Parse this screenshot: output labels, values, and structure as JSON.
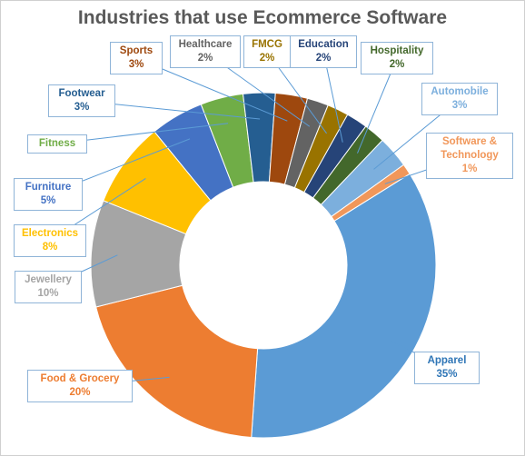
{
  "chart_data": {
    "type": "pie",
    "variant": "doughnut",
    "title": "Industries that use  Ecommerce Software",
    "series": [
      {
        "values": [
          {
            "label": "Apparel",
            "value": 35,
            "value_label": "35%",
            "color": "#5b9bd5"
          },
          {
            "label": "Food & Grocery",
            "value": 20,
            "value_label": "20%",
            "color": "#ed7d31"
          },
          {
            "label": "Jewellery",
            "value": 10,
            "value_label": "10%",
            "color": "#a5a5a5"
          },
          {
            "label": "Electronics",
            "value": 8,
            "value_label": "8%",
            "color": "#ffc000"
          },
          {
            "label": "Furniture",
            "value": 5,
            "value_label": "5%",
            "color": "#4472c4"
          },
          {
            "label": "Fitness",
            "value": 4,
            "value_label": "",
            "color": "#70ad47"
          },
          {
            "label": "Footwear",
            "value": 3,
            "value_label": "3%",
            "color": "#255e91"
          },
          {
            "label": "Sports",
            "value": 3,
            "value_label": "3%",
            "color": "#9e480e"
          },
          {
            "label": "Healthcare",
            "value": 2,
            "value_label": "2%",
            "color": "#636363"
          },
          {
            "label": "FMCG",
            "value": 2,
            "value_label": "2%",
            "color": "#997300"
          },
          {
            "label": "Education",
            "value": 2,
            "value_label": "2%",
            "color": "#264478"
          },
          {
            "label": "Hospitality",
            "value": 2,
            "value_label": "2%",
            "color": "#43682b"
          },
          {
            "label": "Automobile",
            "value": 3,
            "value_label": "3%",
            "color": "#7cafdd"
          },
          {
            "label": "Software & Technology",
            "value": 1,
            "value_label": "1%",
            "color": "#f1975a"
          }
        ]
      }
    ],
    "label_colors": {
      "Apparel": "#2e75b6",
      "Food & Grocery": "#ed7d31",
      "Jewellery": "#a5a5a5",
      "Electronics": "#ffc000",
      "Furniture": "#4472c4",
      "Fitness": "#70ad47",
      "Footwear": "#255e91",
      "Sports": "#9e480e",
      "Healthcare": "#636363",
      "FMCG": "#997300",
      "Education": "#264478",
      "Hospitality": "#43682b",
      "Automobile": "#7cafdd",
      "Software & Technology": "#f1975a"
    }
  }
}
